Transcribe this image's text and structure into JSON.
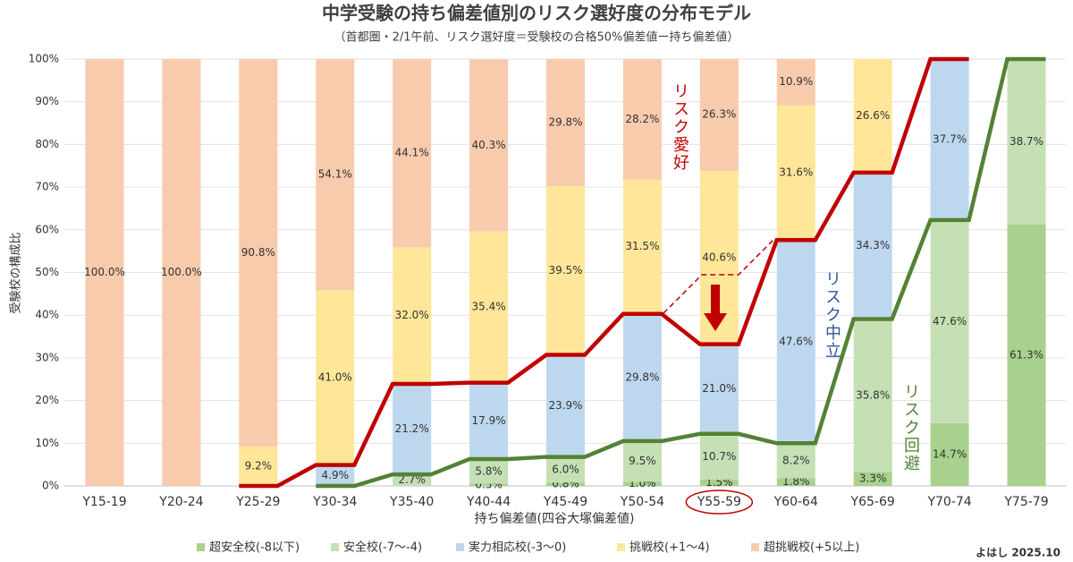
{
  "chart_data": {
    "type": "stacked-bar",
    "title": "中学受験の持ち偏差値別のリスク選好度の分布モデル",
    "subtitle": "（首都圏・2/1午前、リスク選好度＝受験校の合格50%偏差値ー持ち偏差値）",
    "x_label": "持ち偏差値(四谷大塚偏差値)",
    "y_label": "受験校の構成比",
    "credit": "よはし 2025.10",
    "categories": [
      "Y15-19",
      "Y20-24",
      "Y25-29",
      "Y30-34",
      "Y35-40",
      "Y40-44",
      "Y45-49",
      "Y50-54",
      "Y55-59",
      "Y60-64",
      "Y65-69",
      "Y70-74",
      "Y75-79"
    ],
    "series": [
      {
        "name": "超安全校(-8以下)",
        "color": "#a9d18e",
        "values": [
          null,
          null,
          null,
          null,
          null,
          0.5,
          0.8,
          1.0,
          1.5,
          1.8,
          3.3,
          14.7,
          61.3
        ],
        "value_labels": [
          null,
          null,
          null,
          null,
          null,
          "0.5%",
          "0.8%",
          "1.0%",
          "1.5%",
          "1.8%",
          "3.3%",
          "14.7%",
          "61.3%"
        ]
      },
      {
        "name": "安全校(-7〜-4)",
        "color": "#c5e0b4",
        "values": [
          null,
          null,
          null,
          null,
          2.7,
          5.8,
          6.0,
          9.5,
          10.7,
          8.2,
          35.8,
          47.6,
          38.7
        ],
        "value_labels": [
          null,
          null,
          null,
          null,
          "2.7%",
          "5.8%",
          "6.0%",
          "9.5%",
          "10.7%",
          "8.2%",
          "35.8%",
          "47.6%",
          "38.7%"
        ]
      },
      {
        "name": "実力相応校(-3〜0)",
        "color": "#bdd7ee",
        "values": [
          null,
          null,
          null,
          4.9,
          21.2,
          17.9,
          23.9,
          29.8,
          21.0,
          47.6,
          34.3,
          37.7,
          null
        ],
        "value_labels": [
          null,
          null,
          null,
          "4.9%",
          "21.2%",
          "17.9%",
          "23.9%",
          "29.8%",
          "21.0%",
          "47.6%",
          "34.3%",
          "37.7%",
          null
        ]
      },
      {
        "name": "挑戦校(+1〜4)",
        "color": "#ffe699",
        "values": [
          null,
          null,
          9.2,
          41.0,
          32.0,
          35.4,
          39.5,
          31.5,
          40.6,
          31.6,
          26.6,
          null,
          null
        ],
        "value_labels": [
          null,
          null,
          "9.2%",
          "41.0%",
          "32.0%",
          "35.4%",
          "39.5%",
          "31.5%",
          "40.6%",
          "31.6%",
          "26.6%",
          null,
          null
        ]
      },
      {
        "name": "超挑戦校(+5以上)",
        "color": "#f8cbad",
        "values": [
          100.0,
          100.0,
          90.8,
          54.1,
          44.1,
          40.3,
          29.8,
          28.2,
          26.3,
          10.9,
          null,
          null,
          null
        ],
        "value_labels": [
          "100.0%",
          "100.0%",
          "90.8%",
          "54.1%",
          "44.1%",
          "40.3%",
          "29.8%",
          "28.2%",
          "26.3%",
          "10.9%",
          null,
          null,
          null
        ]
      }
    ],
    "lines": [
      {
        "top_series": 2,
        "color": "#c00000"
      },
      {
        "top_series": 1,
        "color": "#548235"
      }
    ],
    "annotations": [
      {
        "text": "リスク愛好",
        "color": "#c00000"
      },
      {
        "text": "リスク中立",
        "color": "#2f5597"
      },
      {
        "text": "リスク回避",
        "color": "#548235"
      }
    ],
    "ylim": [
      0,
      100
    ],
    "yticks": [
      {
        "value": 0,
        "label": "0%"
      },
      {
        "value": 10,
        "label": "10%"
      },
      {
        "value": 20,
        "label": "20%"
      },
      {
        "value": 30,
        "label": "30%"
      },
      {
        "value": 40,
        "label": "40%"
      },
      {
        "value": 50,
        "label": "50%"
      },
      {
        "value": 60,
        "label": "60%"
      },
      {
        "value": 70,
        "label": "70%"
      },
      {
        "value": 80,
        "label": "80%"
      },
      {
        "value": 90,
        "label": "90%"
      },
      {
        "value": 100,
        "label": "100%"
      }
    ],
    "grid": true
  }
}
